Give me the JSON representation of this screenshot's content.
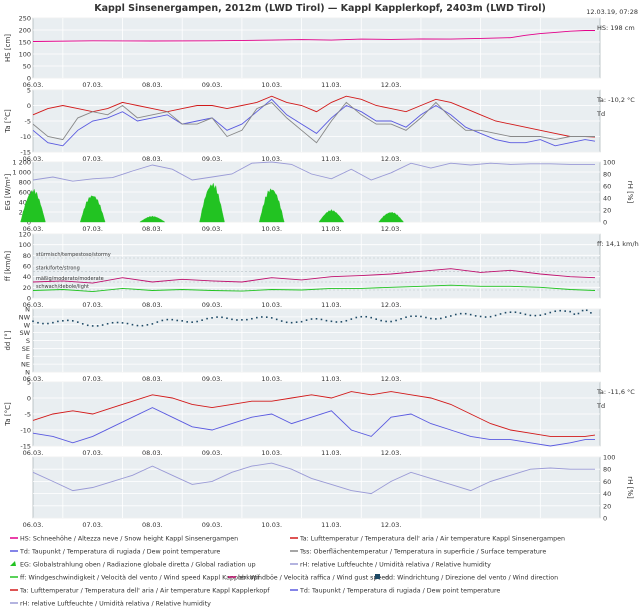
{
  "title": "Kappl Sinsenergampen, 2012m (LWD Tirol) — Kappl Kapplerkopf, 2403m (LWD Tirol)",
  "timestamp": "12.03.19, 07:28",
  "chart_data": [
    {
      "type": "line",
      "ylabel": "HS [cm]",
      "ylim": [
        0,
        250
      ],
      "y_ticks": [
        "0",
        "50",
        "100",
        "150",
        "200",
        "250"
      ],
      "x_ticks": [
        "06.03.",
        "07.03.",
        "08.03.",
        "09.03.",
        "10.03.",
        "11.03.",
        "12.03."
      ],
      "series": [
        {
          "name": "HS",
          "color": "#e3008a",
          "x": [
            0,
            24,
            48,
            72,
            96,
            108,
            120,
            132,
            144,
            156,
            168,
            180,
            192,
            198,
            204,
            210,
            216,
            222,
            226
          ],
          "y": [
            152,
            155,
            154,
            155,
            158,
            160,
            158,
            162,
            161,
            163,
            162,
            165,
            168,
            178,
            185,
            190,
            195,
            198,
            198
          ]
        }
      ],
      "annotations": [
        {
          "text": "HS: 198 cm"
        }
      ]
    },
    {
      "type": "line",
      "ylabel": "Ta [°C]",
      "ylim": [
        -15,
        5
      ],
      "y_ticks": [
        "5",
        "0",
        "-5",
        "-10",
        "-15"
      ],
      "x_ticks": [
        "06.03.",
        "07.03.",
        "08.03.",
        "09.03.",
        "10.03.",
        "11.03.",
        "12.03."
      ],
      "series": [
        {
          "name": "Ta",
          "color": "#d21a1a",
          "x": [
            0,
            6,
            12,
            18,
            24,
            30,
            36,
            42,
            48,
            54,
            60,
            66,
            72,
            78,
            84,
            90,
            96,
            102,
            108,
            114,
            120,
            126,
            132,
            138,
            144,
            150,
            156,
            162,
            168,
            174,
            180,
            186,
            192,
            198,
            204,
            210,
            216,
            222,
            226
          ],
          "y": [
            -3,
            -1,
            0,
            -1,
            -2,
            -1,
            1,
            0,
            -1,
            -2,
            -1,
            0,
            0,
            -1,
            0,
            1,
            3,
            1,
            0,
            -2,
            1,
            3,
            2,
            0,
            -1,
            -2,
            0,
            2,
            1,
            -1,
            -3,
            -5,
            -6,
            -7,
            -8,
            -9,
            -10,
            -10,
            -10.2
          ]
        },
        {
          "name": "Td",
          "color": "#5a5ae0",
          "x": [
            0,
            6,
            12,
            18,
            24,
            30,
            36,
            42,
            48,
            54,
            60,
            66,
            72,
            78,
            84,
            90,
            96,
            102,
            108,
            114,
            120,
            126,
            132,
            138,
            144,
            150,
            156,
            162,
            168,
            174,
            180,
            186,
            192,
            198,
            204,
            210,
            216,
            222,
            226
          ],
          "y": [
            -8,
            -12,
            -13,
            -8,
            -5,
            -4,
            -2,
            -5,
            -4,
            -3,
            -6,
            -5,
            -4,
            -8,
            -6,
            -2,
            2,
            -3,
            -6,
            -9,
            -4,
            0,
            -2,
            -5,
            -5,
            -7,
            -3,
            0,
            -3,
            -7,
            -9,
            -11,
            -12,
            -12,
            -11,
            -13,
            -12,
            -11,
            -11.5
          ]
        },
        {
          "name": "Tss",
          "color": "#888888",
          "x": [
            0,
            6,
            12,
            18,
            24,
            30,
            36,
            42,
            48,
            54,
            60,
            66,
            72,
            78,
            84,
            90,
            96,
            102,
            108,
            114,
            120,
            126,
            132,
            138,
            144,
            150,
            156,
            162,
            168,
            174,
            180,
            186,
            192,
            198,
            204,
            210,
            216,
            222,
            226
          ],
          "y": [
            -6,
            -10,
            -11,
            -4,
            -2,
            -3,
            0,
            -4,
            -3,
            -2,
            -6,
            -6,
            -4,
            -10,
            -8,
            -1,
            1,
            -4,
            -8,
            -12,
            -5,
            1,
            -3,
            -6,
            -6,
            -8,
            -4,
            1,
            -4,
            -8,
            -8,
            -9,
            -10,
            -10,
            -10,
            -11,
            -10,
            -10,
            -10
          ]
        }
      ],
      "annotations": [
        {
          "text": "Ta: -10,2 °C"
        },
        {
          "text": "Td"
        }
      ]
    },
    {
      "type": "area",
      "ylabel": "EG [W/m²]",
      "ylabel_right": "rH [%]",
      "ylim": [
        0,
        1200
      ],
      "ylim_right": [
        0,
        100
      ],
      "y_ticks": [
        "1 200",
        "1 000",
        "800",
        "600",
        "400",
        "200",
        "0"
      ],
      "y_ticks_right": [
        "100",
        "80",
        "60",
        "40",
        "20",
        "0"
      ],
      "x_ticks": [
        "06.03.",
        "07.03.",
        "08.03.",
        "09.03.",
        "10.03.",
        "11.03.",
        "12.03."
      ],
      "series": [
        {
          "name": "EG",
          "color": "#22c322",
          "days": [
            0,
            1,
            2,
            3,
            4,
            5,
            6
          ],
          "peaks": [
            680,
            580,
            120,
            820,
            720,
            250,
            210
          ]
        },
        {
          "name": "rH",
          "color": "#9a9ad6",
          "x": [
            0,
            8,
            16,
            24,
            32,
            40,
            48,
            56,
            64,
            72,
            80,
            88,
            96,
            104,
            112,
            120,
            128,
            136,
            144,
            152,
            160,
            168,
            176,
            184,
            192,
            200,
            208,
            216,
            222,
            226
          ],
          "y": [
            70,
            75,
            68,
            72,
            74,
            85,
            95,
            88,
            70,
            75,
            80,
            98,
            100,
            96,
            80,
            72,
            88,
            70,
            82,
            98,
            90,
            98,
            95,
            98,
            96,
            97,
            97,
            96,
            96,
            96
          ]
        }
      ]
    },
    {
      "type": "line",
      "ylabel": "ff [km/h]",
      "ylim": [
        0,
        120
      ],
      "y_ticks": [
        "120",
        "100",
        "80",
        "60",
        "40",
        "20",
        "0"
      ],
      "x_ticks": [
        "06.03.",
        "07.03.",
        "08.03.",
        "09.03.",
        "10.03.",
        "11.03.",
        "12.03."
      ],
      "series": [
        {
          "name": "bb",
          "color": "#c0106e",
          "x": [
            0,
            12,
            24,
            36,
            48,
            60,
            72,
            84,
            96,
            108,
            120,
            132,
            144,
            156,
            168,
            180,
            192,
            204,
            216,
            226
          ],
          "y": [
            30,
            32,
            28,
            38,
            30,
            35,
            32,
            30,
            38,
            34,
            40,
            42,
            45,
            50,
            55,
            48,
            52,
            45,
            40,
            38
          ]
        },
        {
          "name": "ff",
          "color": "#22c322",
          "x": [
            0,
            12,
            24,
            36,
            48,
            60,
            72,
            84,
            96,
            108,
            120,
            132,
            144,
            156,
            168,
            180,
            192,
            204,
            216,
            226
          ],
          "y": [
            14,
            16,
            12,
            18,
            14,
            16,
            14,
            13,
            16,
            15,
            18,
            18,
            20,
            22,
            24,
            22,
            22,
            20,
            16,
            14.1
          ]
        }
      ],
      "bands": [
        "stürmisch/tempestoso/stormy",
        "stark/forte/strong",
        "mäßig/moderato/moderate",
        "schwach/debole/light"
      ],
      "annotations": [
        {
          "text": "ff: 14,1 km/h"
        }
      ]
    },
    {
      "type": "scatter",
      "ylabel": "dd [°]",
      "categories": [
        "N",
        "NW",
        "W",
        "SW",
        "S",
        "SE",
        "E",
        "NE",
        "N"
      ],
      "x_ticks": [
        "06.03.",
        "07.03.",
        "08.03.",
        "09.03.",
        "10.03.",
        "11.03.",
        "12.03."
      ],
      "series": [
        {
          "name": "dd",
          "color": "#1e4a66",
          "x": [
            0,
            12,
            24,
            36,
            48,
            60,
            72,
            84,
            96,
            108,
            120,
            132,
            144,
            156,
            168,
            180,
            192,
            204,
            216,
            226
          ],
          "y": [
            290,
            285,
            275,
            270,
            280,
            295,
            300,
            310,
            300,
            290,
            295,
            305,
            300,
            310,
            320,
            325,
            330,
            335,
            340,
            345
          ]
        }
      ]
    },
    {
      "type": "line",
      "ylabel": "Ta [°C]",
      "ylim": [
        -15,
        5
      ],
      "y_ticks": [
        "5",
        "0",
        "-5",
        "-10",
        "-15"
      ],
      "x_ticks": [
        "06.03.",
        "07.03.",
        "08.03.",
        "09.03.",
        "10.03.",
        "11.03.",
        "12.03."
      ],
      "series": [
        {
          "name": "Ta",
          "color": "#d21a1a",
          "x": [
            0,
            8,
            16,
            24,
            32,
            40,
            48,
            56,
            64,
            72,
            80,
            88,
            96,
            104,
            112,
            120,
            128,
            136,
            144,
            152,
            160,
            168,
            176,
            184,
            192,
            200,
            208,
            216,
            222,
            226
          ],
          "y": [
            -7,
            -5,
            -4,
            -5,
            -3,
            -1,
            1,
            0,
            -2,
            -3,
            -2,
            -1,
            -1,
            0,
            1,
            0,
            2,
            1,
            2,
            1,
            0,
            -2,
            -5,
            -8,
            -10,
            -11,
            -12,
            -12,
            -12,
            -11.6
          ]
        },
        {
          "name": "Td",
          "color": "#5a5ae0",
          "x": [
            0,
            8,
            16,
            24,
            32,
            40,
            48,
            56,
            64,
            72,
            80,
            88,
            96,
            104,
            112,
            120,
            128,
            136,
            144,
            152,
            160,
            168,
            176,
            184,
            192,
            200,
            208,
            216,
            222,
            226
          ],
          "y": [
            -11,
            -12,
            -14,
            -12,
            -9,
            -6,
            -3,
            -6,
            -9,
            -10,
            -8,
            -6,
            -5,
            -8,
            -6,
            -4,
            -10,
            -12,
            -6,
            -5,
            -8,
            -10,
            -12,
            -13,
            -13,
            -14,
            -15,
            -14,
            -13,
            -13
          ]
        }
      ],
      "annotations": [
        {
          "text": "Ta: -11,6 °C"
        },
        {
          "text": "Td"
        }
      ]
    },
    {
      "type": "line",
      "ylabel_right": "rH [%]",
      "ylim": [
        0,
        100
      ],
      "y_ticks_right": [
        "100",
        "80",
        "60",
        "40",
        "20",
        "0"
      ],
      "x_ticks": [
        "06.03.",
        "07.03.",
        "08.03.",
        "09.03.",
        "10.03.",
        "11.03.",
        "12.03."
      ],
      "series": [
        {
          "name": "rH",
          "color": "#9a9ad6",
          "x": [
            0,
            8,
            16,
            24,
            32,
            40,
            48,
            56,
            64,
            72,
            80,
            88,
            96,
            104,
            112,
            120,
            128,
            136,
            144,
            152,
            160,
            168,
            176,
            184,
            192,
            200,
            208,
            216,
            222,
            226
          ],
          "y": [
            75,
            60,
            45,
            50,
            60,
            70,
            85,
            70,
            55,
            60,
            75,
            85,
            90,
            80,
            65,
            55,
            45,
            40,
            60,
            75,
            65,
            55,
            45,
            60,
            70,
            80,
            82,
            80,
            80,
            80
          ]
        }
      ]
    }
  ],
  "legend": [
    {
      "text": "HS: Schneehöhe / Altezza neve / Snow height  Kappl Sinsenergampen",
      "color": "#e3008a",
      "type": "line"
    },
    {
      "text": "Ta: Lufttemperatur / Temperatura dell' aria / Air temperature  Kappl Sinsenergampen",
      "color": "#d21a1a",
      "type": "line"
    },
    {
      "text": "Td: Taupunkt / Temperatura di rugiada / Dew point temperature",
      "color": "#5a5ae0",
      "type": "line"
    },
    {
      "text": "Tss: Oberflächentemperatur / Temperatura in superficie / Surface temperature",
      "color": "#888888",
      "type": "line"
    },
    {
      "text": "EG: Globalstrahlung oben / Radiazione globale diretta / Global radiation up",
      "color": "#22c322",
      "type": "area"
    },
    {
      "text": "rH: relative Luftfeuchte / Umidità relativa / Relative humidity",
      "color": "#9a9ad6",
      "type": "line"
    },
    {
      "text": "ff: Windgeschwindigkeit / Velocità del vento / Wind speed  Kappl Kapplerkopf",
      "color": "#22c322",
      "type": "line"
    },
    {
      "text": "bb: Windböe / Velocità raffica / Wind gust speed",
      "color": "#c0106e",
      "type": "line"
    },
    {
      "text": "dd: Windrichtung / Direzione del vento / Wind direction",
      "color": "#1e4a66",
      "type": "square"
    },
    {
      "text": "Ta: Lufttemperatur / Temperatura dell' aria / Air temperature  Kappl Kapplerkopf",
      "color": "#d21a1a",
      "type": "line"
    },
    {
      "text": "Td: Taupunkt / Temperatura di rugiada / Dew point temperature",
      "color": "#5a5ae0",
      "type": "line"
    },
    {
      "text": "rH: relative Luftfeuchte / Umidità relativa / Relative humidity",
      "color": "#9a9ad6",
      "type": "line"
    }
  ]
}
